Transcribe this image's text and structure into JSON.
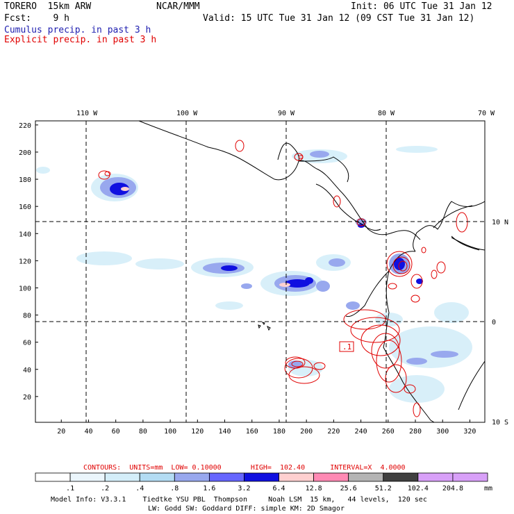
{
  "header": {
    "model": "TORERO  15km ARW",
    "org": "NCAR/MMM",
    "init": "Init: 06 UTC Tue 31 Jan 12",
    "fcst": "Fcst:    9 h",
    "valid": "Valid: 15 UTC Tue 31 Jan 12 (09 CST Tue 31 Jan 12)",
    "cumulus": "Cumulus precip. in past 3 h",
    "explicit": "Explicit precip. in past 3 h",
    "cumulus_color": "#2020b0",
    "explicit_color": "#e00000"
  },
  "map": {
    "lon_labels": [
      "110 W",
      "100 W",
      "90 W",
      "80 W",
      "70 W"
    ],
    "lat_labels": [
      "10 N",
      "0",
      "10 S"
    ],
    "x_ticks": [
      "20",
      "40",
      "60",
      "80",
      "100",
      "120",
      "140",
      "160",
      "180",
      "200",
      "220",
      "240",
      "260",
      "280",
      "300",
      "320"
    ],
    "y_ticks": [
      "20",
      "40",
      "60",
      "80",
      "100",
      "120",
      "140",
      "160",
      "180",
      "200",
      "220"
    ],
    "contour_label": ".1"
  },
  "footer": {
    "contours_line": "CONTOURS:  UNITS=mm  LOW= 0.10000       HIGH=  102.40      INTERVAL=X  4.0000",
    "units": "mm",
    "colorbar": {
      "labels": [
        ".1",
        ".2",
        ".4",
        ".8",
        "1.6",
        "3.2",
        "6.4",
        "12.8",
        "25.6",
        "51.2",
        "102.4",
        "204.8"
      ],
      "colors": [
        "#ffffff",
        "#ebf6fc",
        "#d4eef9",
        "#b3dcf3",
        "#98a8ee",
        "#6666ff",
        "#1010e0",
        "#ffd0d0",
        "#ff8ab4",
        "#b4b4b4",
        "#404040",
        "#d8a0f8"
      ]
    },
    "model_info_1": "Model Info: V3.3.1    Tiedtke YSU PBL  Thompson     Noah LSM  15 km,   44 levels,  120 sec",
    "model_info_2": "LW: Godd SW: Goddard DIFF: simple KM: 2D Smagor"
  }
}
